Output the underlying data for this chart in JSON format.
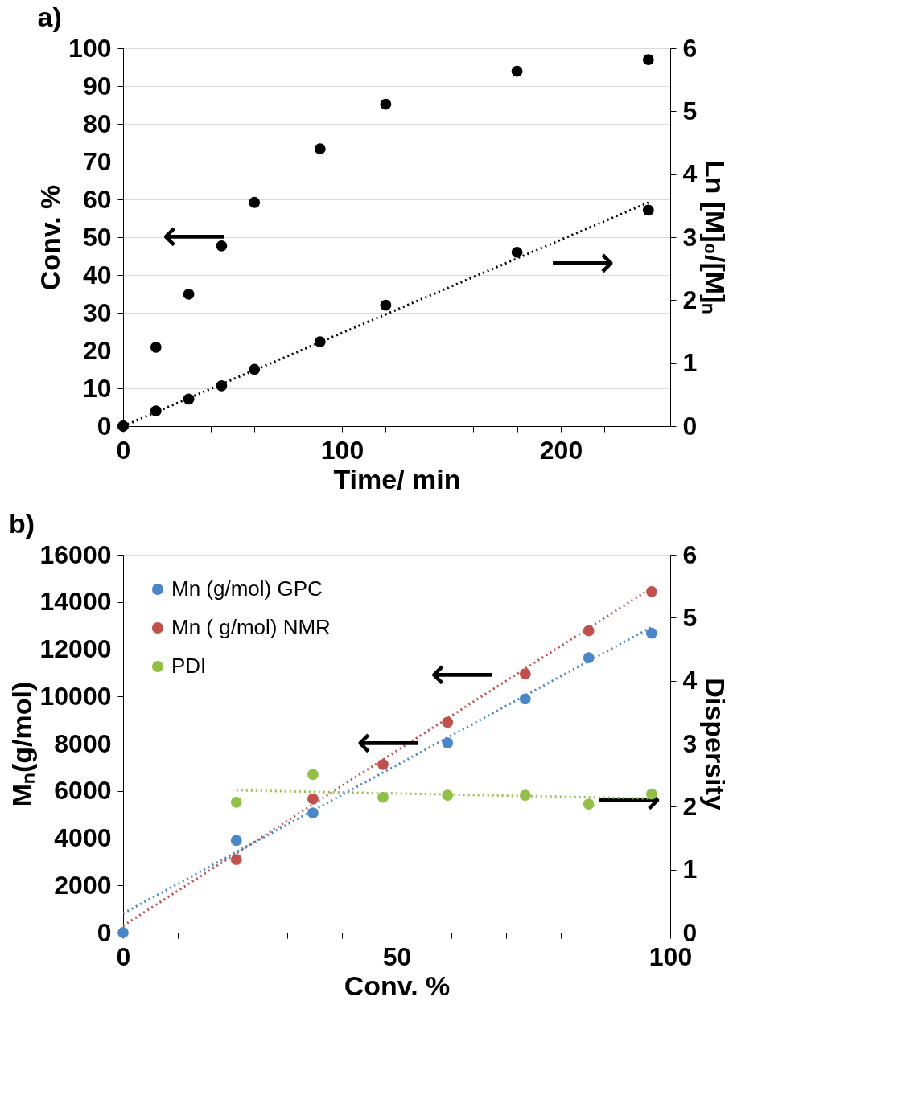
{
  "chart_data": [
    {
      "type": "scatter",
      "title": "a)",
      "xlabel": "Time/ min",
      "ylabel": "Conv. %",
      "y2label": "Ln [M]₀/[M]ₙ",
      "marker": "circle",
      "grid": "y",
      "legend": false,
      "xlim": [
        0,
        250
      ],
      "xticks": [
        0,
        {
          "value": 20,
          "label": null
        },
        {
          "value": 40,
          "label": null
        },
        {
          "value": 60,
          "label": null
        },
        {
          "value": 80,
          "label": null
        },
        100,
        {
          "value": 120,
          "label": null
        },
        {
          "value": 140,
          "label": null
        },
        {
          "value": 160,
          "label": null
        },
        {
          "value": 180,
          "label": null
        },
        200,
        {
          "value": 220,
          "label": null
        },
        {
          "value": 240,
          "label": null
        }
      ],
      "ylim": [
        0,
        100
      ],
      "yticks": [
        0,
        10,
        20,
        30,
        40,
        50,
        60,
        70,
        80,
        90,
        100
      ],
      "y2lim": [
        0,
        6
      ],
      "y2ticks": [
        0,
        1,
        2,
        3,
        4,
        5,
        6
      ],
      "series": [
        {
          "color": "#000000",
          "x": [
            0,
            15,
            30,
            45,
            60,
            90,
            120,
            180,
            240
          ],
          "values": [
            0,
            20.9,
            34.9,
            47.7,
            59.2,
            73.4,
            85.2,
            93.9,
            97.0
          ]
        },
        {
          "axis": "y2",
          "color": "#000000",
          "x": [
            0,
            15,
            30,
            45,
            60,
            90,
            120,
            180,
            240
          ],
          "values": [
            0,
            0.24,
            0.43,
            0.64,
            0.9,
            1.34,
            1.92,
            2.76,
            3.43
          ]
        },
        {
          "type": "line",
          "axis": "y2",
          "color": "#000000",
          "line_style": "dotted",
          "marker": "none",
          "x": [
            0,
            240
          ],
          "values": [
            0,
            3.55
          ]
        }
      ],
      "annotations": [
        "⟵",
        "⟶"
      ]
    },
    {
      "type": "scatter",
      "title": "b)",
      "xlabel": "Conv. %",
      "ylabel": "Mₙ(g/mol)",
      "y2label": "Dispersity",
      "marker": "circle",
      "grid": false,
      "legend": "top left",
      "xlim": [
        0,
        100
      ],
      "xticks": [
        0,
        {
          "value": 10,
          "label": null
        },
        {
          "value": 20,
          "label": null
        },
        {
          "value": 30,
          "label": null
        },
        {
          "value": 40,
          "label": null
        },
        50,
        {
          "value": 60,
          "label": null
        },
        {
          "value": 70,
          "label": null
        },
        {
          "value": 80,
          "label": null
        },
        {
          "value": 90,
          "label": null
        },
        100
      ],
      "ylim": [
        0,
        16000
      ],
      "yticks": [
        0,
        2000,
        4000,
        6000,
        8000,
        10000,
        12000,
        14000,
        16000
      ],
      "y2lim": [
        0,
        6
      ],
      "y2ticks": [
        0,
        1,
        2,
        3,
        4,
        5,
        6
      ],
      "series": [
        {
          "name": "Mn (g/mol) GPC",
          "color": "#4a86c8",
          "x": [
            0,
            20.7,
            34.7,
            59.3,
            73.5,
            85.1,
            96.6
          ],
          "values": [
            0,
            3900,
            5070,
            8030,
            9890,
            11640,
            12680
          ]
        },
        {
          "name": "Mn ( g/mol) NMR",
          "color": "#c0504d",
          "x": [
            20.7,
            34.7,
            47.5,
            59.3,
            73.5,
            85.1,
            96.6
          ],
          "values": [
            3090,
            5660,
            7120,
            8910,
            10960,
            12780,
            14440
          ]
        },
        {
          "name": "PDI",
          "axis": "y2",
          "color": "#92c047",
          "x": [
            20.7,
            34.7,
            47.5,
            59.3,
            73.5,
            85.1,
            96.6
          ],
          "values": [
            2.07,
            2.51,
            2.15,
            2.18,
            2.18,
            2.04,
            2.2
          ]
        },
        {
          "type": "line",
          "color": "#4a86c8",
          "line_style": "dotted",
          "marker": "none",
          "x": [
            0,
            96.6
          ],
          "values": [
            810,
            12940
          ]
        },
        {
          "type": "line",
          "color": "#c0504d",
          "line_style": "dotted",
          "marker": "none",
          "x": [
            0,
            96.6
          ],
          "values": [
            290,
            14600
          ]
        },
        {
          "type": "line",
          "axis": "y2",
          "color": "#92c047",
          "line_style": "dotted",
          "marker": "none",
          "x": [
            20.7,
            96.6
          ],
          "values": [
            2.26,
            2.13
          ]
        }
      ],
      "annotations": [
        "⟵",
        "⟵",
        "⟶"
      ]
    }
  ]
}
